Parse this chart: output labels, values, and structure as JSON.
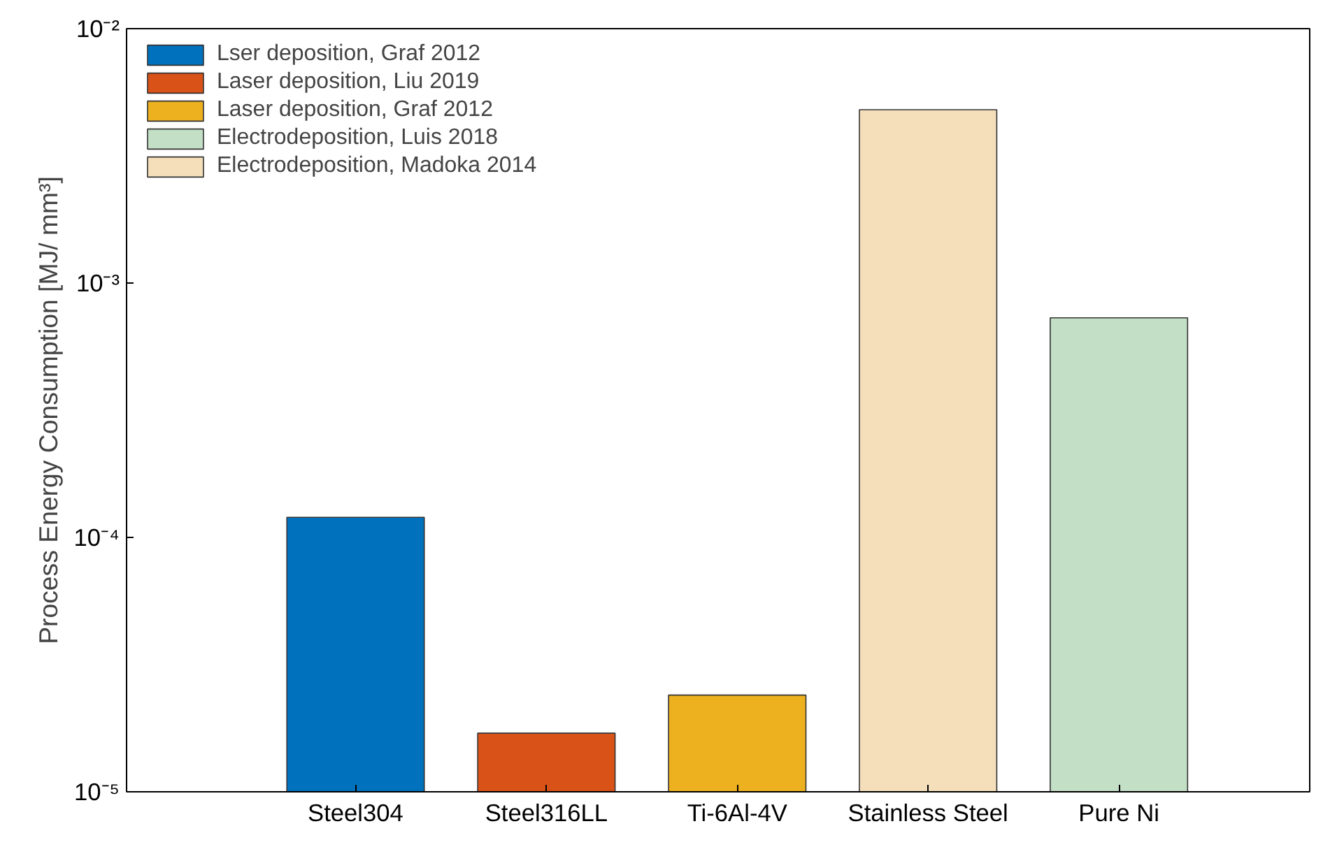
{
  "chart_data": {
    "type": "bar",
    "ylabel": "Process Energy Consumption [MJ/ mm³]",
    "categories": [
      "Steel304",
      "Steel316LL",
      "Ti-6Al-4V",
      "Stainless Steel",
      "Pure Ni"
    ],
    "series": [
      {
        "name": "Lser deposition, Graf 2012",
        "color": "#0072bd",
        "values": [
          0.00012,
          null,
          null,
          null,
          null
        ]
      },
      {
        "name": "Laser deposition, Liu 2019",
        "color": "#d95319",
        "values": [
          null,
          1.7e-05,
          null,
          null,
          null
        ]
      },
      {
        "name": "Laser deposition, Graf 2012",
        "color": "#edb120",
        "values": [
          null,
          null,
          2.4e-05,
          null,
          null
        ]
      },
      {
        "name": "Electrodeposition, Luis 2018",
        "color": "#c3dfc5",
        "values": [
          null,
          null,
          null,
          null,
          0.00073
        ]
      },
      {
        "name": "Electrodeposition, Madoka 2014",
        "color": "#f5dfbb",
        "values": [
          null,
          null,
          null,
          0.0048,
          null
        ]
      }
    ],
    "log": "y",
    "ylim": [
      1e-05,
      0.01
    ],
    "yticks": [
      {
        "value": 1e-05,
        "label": "10⁻⁵"
      },
      {
        "value": 0.0001,
        "label": "10⁻⁴"
      },
      {
        "value": 0.001,
        "label": "10⁻³"
      },
      {
        "value": 0.01,
        "label": "10⁻²"
      }
    ],
    "stacked": true,
    "grid": false,
    "legend": "top left"
  }
}
